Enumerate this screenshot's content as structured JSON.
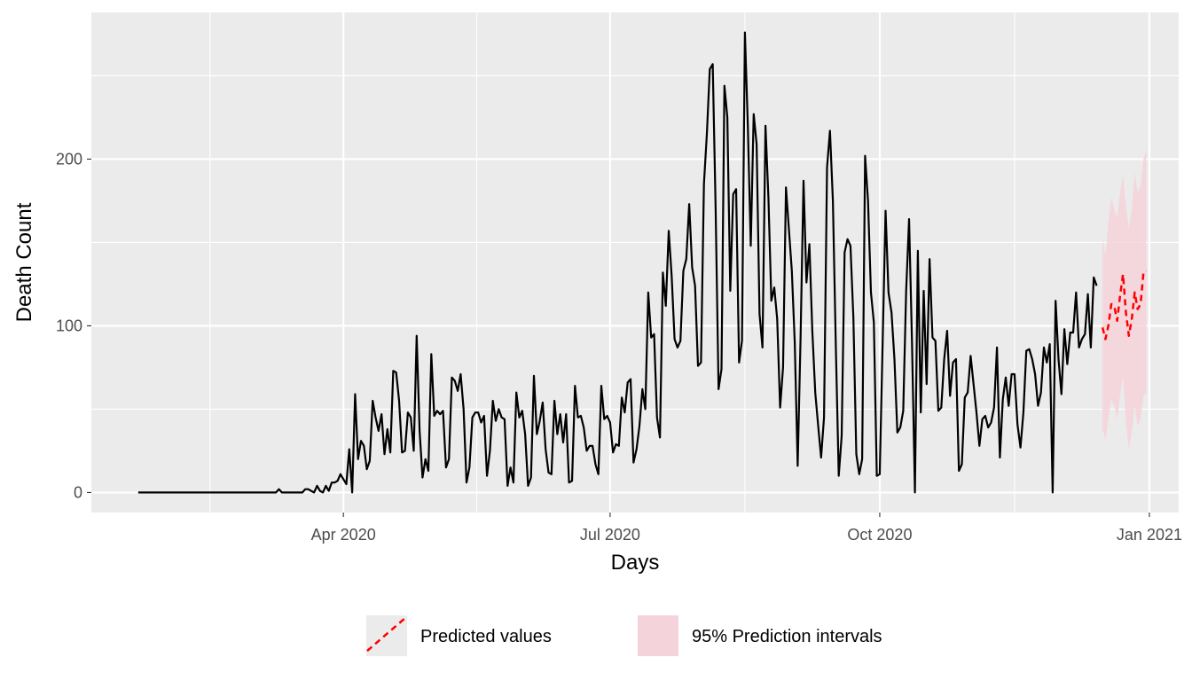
{
  "chart_data": {
    "type": "line",
    "xlabel": "Days",
    "ylabel": "Death Count",
    "x_ticks": [
      {
        "label": "Apr 2020",
        "date": "2020-04-01"
      },
      {
        "label": "Jul 2020",
        "date": "2020-07-01"
      },
      {
        "label": "Oct 2020",
        "date": "2020-10-01"
      },
      {
        "label": "Jan 2021",
        "date": "2021-01-01"
      }
    ],
    "y_ticks": [
      0,
      100,
      200
    ],
    "xlim": [
      "2020-01-06",
      "2021-01-11"
    ],
    "ylim": [
      -12,
      288
    ],
    "grid": true,
    "legend_position": "bottom",
    "series": [
      {
        "kind": "observed",
        "color": "#000000",
        "start_date": "2020-01-22",
        "values": [
          0,
          0,
          0,
          0,
          0,
          0,
          0,
          0,
          0,
          0,
          0,
          0,
          0,
          0,
          0,
          0,
          0,
          0,
          0,
          0,
          0,
          0,
          0,
          0,
          0,
          0,
          0,
          0,
          0,
          0,
          0,
          0,
          0,
          0,
          0,
          0,
          0,
          0,
          0,
          0,
          0,
          0,
          0,
          0,
          0,
          0,
          0,
          0,
          2,
          0,
          0,
          0,
          0,
          0,
          0,
          0,
          0,
          2,
          2,
          1,
          0,
          4,
          1,
          0,
          4,
          1,
          6,
          6,
          7,
          11,
          8,
          5,
          26,
          0,
          59,
          20,
          31,
          28,
          14,
          19,
          55,
          45,
          37,
          47,
          23,
          38,
          24,
          73,
          72,
          55,
          24,
          25,
          48,
          45,
          25,
          94,
          37,
          9,
          20,
          13,
          83,
          46,
          49,
          47,
          49,
          15,
          20,
          69,
          67,
          61,
          71,
          50,
          6,
          15,
          45,
          48,
          48,
          42,
          46,
          10,
          25,
          55,
          43,
          50,
          45,
          44,
          4,
          15,
          6,
          60,
          45,
          49,
          35,
          4,
          9,
          70,
          35,
          43,
          54,
          26,
          12,
          11,
          55,
          35,
          47,
          30,
          47,
          6,
          7,
          64,
          45,
          46,
          39,
          25,
          28,
          28,
          17,
          11,
          64,
          44,
          46,
          42,
          24,
          29,
          28,
          57,
          48,
          66,
          68,
          18,
          26,
          40,
          62,
          50,
          120,
          93,
          95,
          45,
          33,
          132,
          112,
          157,
          130,
          92,
          87,
          91,
          133,
          140,
          173,
          135,
          124,
          76,
          78,
          185,
          215,
          254,
          257,
          170,
          62,
          74,
          244,
          225,
          121,
          179,
          182,
          78,
          91,
          276,
          220,
          148,
          227,
          209,
          107,
          87,
          220,
          177,
          115,
          123,
          104,
          51,
          75,
          183,
          158,
          133,
          90,
          16,
          94,
          187,
          126,
          149,
          97,
          60,
          40,
          21,
          45,
          195,
          217,
          175,
          88,
          10,
          34,
          144,
          152,
          148,
          105,
          23,
          11,
          20,
          202,
          175,
          120,
          102,
          10,
          11,
          90,
          169,
          120,
          108,
          80,
          36,
          39,
          49,
          121,
          164,
          90,
          0,
          145,
          48,
          121,
          65,
          140,
          93,
          91,
          49,
          51,
          80,
          97,
          58,
          78,
          80,
          13,
          17,
          57,
          60,
          82,
          65,
          48,
          28,
          44,
          46,
          39,
          42,
          51,
          87,
          21,
          56,
          69,
          52,
          71,
          71,
          41,
          27,
          48,
          85,
          86,
          80,
          71,
          52,
          60,
          87,
          78,
          89,
          0,
          115,
          80,
          59,
          98,
          77,
          96,
          96,
          120,
          87,
          92,
          95,
          119,
          87,
          129,
          124
        ]
      },
      {
        "kind": "predicted",
        "name": "Predicted values",
        "color": "#ff0000",
        "start_date": "2020-12-16",
        "values": [
          99,
          92,
          100,
          113,
          112,
          103,
          118,
          131,
          108,
          94,
          104,
          120,
          110,
          113,
          132,
          133
        ]
      },
      {
        "kind": "interval",
        "name": "95% Prediction intervals",
        "color": "#f4d3db",
        "start_date": "2020-12-16",
        "upper": [
          153,
          142,
          162,
          177,
          170,
          165,
          180,
          190,
          172,
          158,
          170,
          192,
          180,
          184,
          200,
          206
        ],
        "lower": [
          38,
          32,
          44,
          56,
          52,
          44,
          58,
          70,
          42,
          26,
          36,
          52,
          40,
          44,
          58,
          60
        ]
      }
    ]
  }
}
